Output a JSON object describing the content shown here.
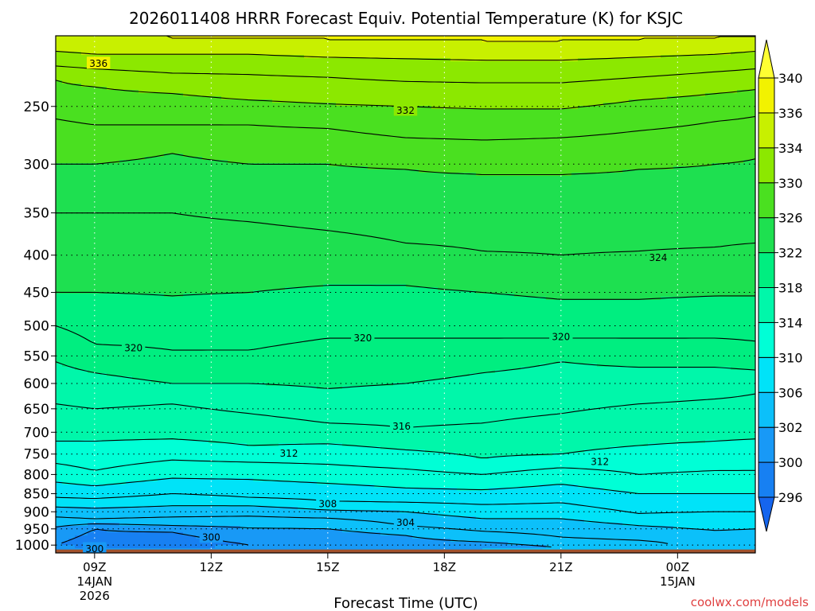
{
  "chart_data": {
    "type": "heatmap",
    "title": "2026011408 HRRR Forecast Equiv. Potential Temperature (K) for KSJC",
    "xlabel": "Forecast Time (UTC)",
    "ylabel": "",
    "x_ticks": [
      {
        "h": 0,
        "label": "09Z",
        "sub1": "14JAN",
        "sub2": "2026"
      },
      {
        "h": 3,
        "label": "12Z",
        "sub1": "",
        "sub2": ""
      },
      {
        "h": 6,
        "label": "15Z",
        "sub1": "",
        "sub2": ""
      },
      {
        "h": 9,
        "label": "18Z",
        "sub1": "",
        "sub2": ""
      },
      {
        "h": 12,
        "label": "21Z",
        "sub1": "",
        "sub2": ""
      },
      {
        "h": 15,
        "label": "00Z",
        "sub1": "15JAN",
        "sub2": ""
      }
    ],
    "xlim_hours": [
      -1,
      17
    ],
    "y_ticks": [
      "250",
      "300",
      "350",
      "400",
      "450",
      "500",
      "550",
      "600",
      "650",
      "700",
      "750",
      "800",
      "850",
      "900",
      "950",
      "1000"
    ],
    "ylim_hPa": [
      1025,
      200
    ],
    "y_scale": "log",
    "grid": "dotted",
    "ground_pressure": 1014,
    "colorbar": {
      "levels": [
        296,
        300,
        302,
        306,
        310,
        314,
        318,
        322,
        326,
        330,
        334,
        336,
        340
      ],
      "colors": [
        "#1565ee",
        "#1780f2",
        "#1899f6",
        "#0cc0fa",
        "#00e3f8",
        "#00ffd6",
        "#00f7aa",
        "#00ee80",
        "#1ee050",
        "#4ae020",
        "#8ce800",
        "#c8f000",
        "#f2f200",
        "#ffff33"
      ],
      "extend": "both"
    },
    "contour_interval": 2,
    "contour_labels": [
      {
        "value": 336,
        "h": 0.1,
        "p": 218
      },
      {
        "value": 332,
        "h": 8.0,
        "p": 253
      },
      {
        "value": 324,
        "h": 14.5,
        "p": 403
      },
      {
        "value": 320,
        "h": 1.0,
        "p": 536
      },
      {
        "value": 320,
        "h": 6.9,
        "p": 519
      },
      {
        "value": 320,
        "h": 12.0,
        "p": 517
      },
      {
        "value": 316,
        "h": 7.9,
        "p": 686
      },
      {
        "value": 312,
        "h": 5.0,
        "p": 748
      },
      {
        "value": 312,
        "h": 13.0,
        "p": 768
      },
      {
        "value": 308,
        "h": 6.0,
        "p": 877
      },
      {
        "value": 304,
        "h": 8.0,
        "p": 930
      },
      {
        "value": 300,
        "h": 3.0,
        "p": 975
      },
      {
        "value": 300,
        "h": 0.0,
        "p": 1011
      }
    ],
    "profiles": [
      {
        "h": -1.0,
        "levels": [
          [
            1025,
            302
          ],
          [
            1000,
            300
          ],
          [
            960,
            301
          ],
          [
            930,
            303
          ],
          [
            900,
            305
          ],
          [
            860,
            308
          ],
          [
            800,
            311
          ],
          [
            720,
            314
          ],
          [
            640,
            316
          ],
          [
            560,
            318
          ],
          [
            500,
            320
          ],
          [
            450,
            322
          ],
          [
            350,
            324
          ],
          [
            300,
            326
          ],
          [
            260,
            328
          ],
          [
            230,
            330
          ],
          [
            220,
            332
          ],
          [
            210,
            334
          ],
          [
            200,
            336
          ]
        ]
      },
      {
        "h": 0.0,
        "levels": [
          [
            1025,
            302
          ],
          [
            1000,
            299
          ],
          [
            950,
            300
          ],
          [
            920,
            304
          ],
          [
            890,
            306
          ],
          [
            850,
            309
          ],
          [
            790,
            312
          ],
          [
            720,
            314
          ],
          [
            650,
            316
          ],
          [
            580,
            318
          ],
          [
            530,
            320
          ],
          [
            450,
            322
          ],
          [
            350,
            324
          ],
          [
            300,
            326
          ],
          [
            265,
            328
          ],
          [
            235,
            330
          ],
          [
            222,
            332
          ],
          [
            212,
            334
          ],
          [
            200,
            336
          ]
        ]
      },
      {
        "h": 2.0,
        "levels": [
          [
            1025,
            302
          ],
          [
            1000,
            299
          ],
          [
            960,
            300
          ],
          [
            930,
            303
          ],
          [
            900,
            305
          ],
          [
            850,
            308
          ],
          [
            790,
            311
          ],
          [
            715,
            314
          ],
          [
            640,
            316
          ],
          [
            600,
            318
          ],
          [
            540,
            320
          ],
          [
            455,
            322
          ],
          [
            350,
            324
          ],
          [
            290,
            326
          ],
          [
            265,
            328
          ],
          [
            240,
            330
          ],
          [
            225,
            332
          ],
          [
            212,
            334
          ],
          [
            202,
            336
          ]
        ]
      },
      {
        "h": 4.0,
        "levels": [
          [
            1025,
            302
          ],
          [
            1000,
            300
          ],
          [
            965,
            301
          ],
          [
            930,
            303
          ],
          [
            895,
            305
          ],
          [
            860,
            308
          ],
          [
            790,
            311
          ],
          [
            730,
            314
          ],
          [
            660,
            316
          ],
          [
            600,
            318
          ],
          [
            540,
            320
          ],
          [
            450,
            322
          ],
          [
            360,
            324
          ],
          [
            300,
            326
          ],
          [
            265,
            328
          ],
          [
            245,
            330
          ],
          [
            226,
            332
          ],
          [
            212,
            334
          ],
          [
            202,
            336
          ]
        ]
      },
      {
        "h": 6.0,
        "levels": [
          [
            1025,
            302
          ],
          [
            1000,
            300
          ],
          [
            970,
            301
          ],
          [
            930,
            303
          ],
          [
            895,
            306
          ],
          [
            870,
            308
          ],
          [
            800,
            311
          ],
          [
            750,
            313
          ],
          [
            680,
            316
          ],
          [
            610,
            318
          ],
          [
            520,
            320
          ],
          [
            440,
            322
          ],
          [
            370,
            324
          ],
          [
            300,
            326
          ],
          [
            268,
            328
          ],
          [
            248,
            330
          ],
          [
            228,
            332
          ],
          [
            214,
            334
          ],
          [
            203,
            336
          ]
        ]
      },
      {
        "h": 8.0,
        "levels": [
          [
            1025,
            302
          ],
          [
            1005,
            301
          ],
          [
            970,
            302
          ],
          [
            940,
            304
          ],
          [
            900,
            306
          ],
          [
            860,
            309
          ],
          [
            810,
            311
          ],
          [
            740,
            314
          ],
          [
            690,
            316
          ],
          [
            600,
            318
          ],
          [
            520,
            320
          ],
          [
            440,
            322
          ],
          [
            385,
            324
          ],
          [
            305,
            326
          ],
          [
            276,
            328
          ],
          [
            250,
            330
          ],
          [
            231,
            332
          ],
          [
            215,
            334
          ],
          [
            203,
            336
          ]
        ]
      },
      {
        "h": 10.0,
        "levels": [
          [
            1025,
            303
          ],
          [
            1005,
            301
          ],
          [
            975,
            303
          ],
          [
            940,
            305
          ],
          [
            900,
            307
          ],
          [
            860,
            309
          ],
          [
            800,
            312
          ],
          [
            760,
            314
          ],
          [
            680,
            316
          ],
          [
            580,
            318
          ],
          [
            520,
            320
          ],
          [
            450,
            322
          ],
          [
            395,
            324
          ],
          [
            310,
            326
          ],
          [
            278,
            328
          ],
          [
            252,
            330
          ],
          [
            232,
            332
          ],
          [
            216,
            334
          ],
          [
            204,
            336
          ]
        ]
      },
      {
        "h": 12.0,
        "levels": [
          [
            1025,
            304
          ],
          [
            1008,
            302
          ],
          [
            975,
            304
          ],
          [
            940,
            305
          ],
          [
            900,
            307
          ],
          [
            850,
            309
          ],
          [
            800,
            311
          ],
          [
            750,
            314
          ],
          [
            660,
            316
          ],
          [
            560,
            318
          ],
          [
            520,
            320
          ],
          [
            460,
            322
          ],
          [
            400,
            324
          ],
          [
            310,
            326
          ],
          [
            276,
            328
          ],
          [
            252,
            330
          ],
          [
            232,
            332
          ],
          [
            216,
            334
          ],
          [
            204,
            336
          ]
        ]
      },
      {
        "h": 14.0,
        "levels": [
          [
            1025,
            305
          ],
          [
            1000,
            303
          ],
          [
            970,
            305
          ],
          [
            940,
            306
          ],
          [
            905,
            308
          ],
          [
            850,
            310
          ],
          [
            800,
            312
          ],
          [
            730,
            314
          ],
          [
            640,
            316
          ],
          [
            570,
            318
          ],
          [
            520,
            320
          ],
          [
            460,
            322
          ],
          [
            395,
            324
          ],
          [
            305,
            326
          ],
          [
            270,
            328
          ],
          [
            245,
            330
          ],
          [
            228,
            332
          ],
          [
            214,
            334
          ],
          [
            203,
            336
          ]
        ]
      },
      {
        "h": 16.0,
        "levels": [
          [
            1025,
            306
          ],
          [
            990,
            305
          ],
          [
            955,
            306
          ],
          [
            920,
            307
          ],
          [
            880,
            309
          ],
          [
            850,
            310
          ],
          [
            790,
            312
          ],
          [
            720,
            314
          ],
          [
            630,
            316
          ],
          [
            570,
            318
          ],
          [
            520,
            320
          ],
          [
            455,
            322
          ],
          [
            390,
            324
          ],
          [
            300,
            326
          ],
          [
            262,
            328
          ],
          [
            240,
            330
          ],
          [
            224,
            332
          ],
          [
            212,
            334
          ],
          [
            202,
            336
          ]
        ]
      },
      {
        "h": 17.0,
        "levels": [
          [
            1025,
            306
          ],
          [
            985,
            305
          ],
          [
            950,
            306
          ],
          [
            920,
            307
          ],
          [
            880,
            309
          ],
          [
            850,
            310
          ],
          [
            790,
            312
          ],
          [
            715,
            314
          ],
          [
            620,
            316
          ],
          [
            575,
            318
          ],
          [
            525,
            320
          ],
          [
            455,
            322
          ],
          [
            385,
            324
          ],
          [
            295,
            326
          ],
          [
            258,
            328
          ],
          [
            237,
            330
          ],
          [
            222,
            332
          ],
          [
            210,
            334
          ],
          [
            201,
            336
          ]
        ]
      }
    ]
  },
  "credit": "coolwx.com/models",
  "ground_color": "#a0522d"
}
